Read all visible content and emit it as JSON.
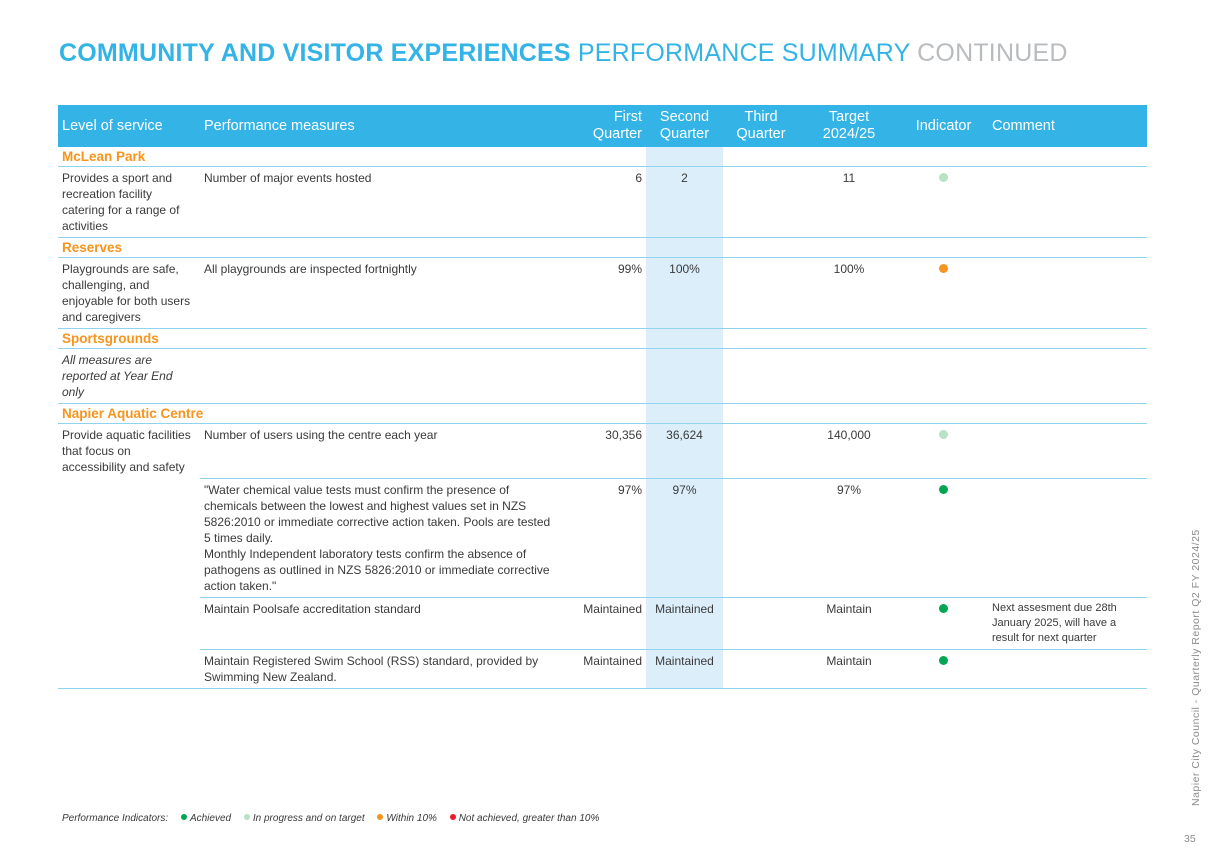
{
  "header": {
    "title_bold": "COMMUNITY AND VISITOR EXPERIENCES",
    "title_light": "PERFORMANCE SUMMARY",
    "title_grey": "CONTINUED"
  },
  "table": {
    "columns": {
      "level": "Level of service",
      "measures": "Performance measures",
      "q1_line1": "First",
      "q1_line2": "Quarter",
      "q2_line1": "Second",
      "q2_line2": "Quarter",
      "q3_line1": "Third",
      "q3_line2": "Quarter",
      "target_line1": "Target",
      "target_line2": "2024/25",
      "indicator": "Indicator",
      "comment": "Comment"
    },
    "sections": {
      "mclean": {
        "name": "McLean Park",
        "level": "Provides a sport and recreation facility catering for a range of activities",
        "row1": {
          "measure": "Number of major events hosted",
          "q1": "6",
          "q2": "2",
          "q3": "",
          "target": "11",
          "indicator": "in-progress",
          "comment": ""
        }
      },
      "reserves": {
        "name": "Reserves",
        "level": "Playgrounds are safe, challenging, and enjoyable for both users and caregivers",
        "row1": {
          "measure": "All playgrounds are inspected fortnightly",
          "q1": "99%",
          "q2": "100%",
          "q3": "",
          "target": "100%",
          "indicator": "within-10",
          "comment": ""
        }
      },
      "sportsgrounds": {
        "name": "Sportsgrounds",
        "level": "All measures are reported at Year End only"
      },
      "aquatic": {
        "name": "Napier Aquatic Centre",
        "level": "Provide aquatic facilities that focus on accessibility and safety",
        "row1": {
          "measure": "Number of users using the centre each year",
          "q1": "30,356",
          "q2": "36,624",
          "q3": "",
          "target": "140,000",
          "indicator": "in-progress",
          "comment": ""
        },
        "row2": {
          "measure_p1": "\"Water chemical value tests must confirm the presence of chemicals between the lowest and highest values set in NZS 5826:2010 or immediate corrective action taken. Pools are tested 5 times daily.",
          "measure_p2": "Monthly Independent laboratory tests confirm the absence of pathogens as outlined in NZS 5826:2010 or immediate corrective action taken.\"",
          "q1": "97%",
          "q2": "97%",
          "q3": "",
          "target": "97%",
          "indicator": "achieved",
          "comment": ""
        },
        "row3": {
          "measure": "Maintain Poolsafe accreditation standard",
          "q1": "Maintained",
          "q2": "Maintained",
          "q3": "",
          "target": "Maintain",
          "indicator": "achieved",
          "comment": "Next assesment due 28th January 2025, will have a result for next quarter"
        },
        "row4": {
          "measure": "Maintain Registered Swim School (RSS) standard, provided by Swimming New Zealand.",
          "q1": "Maintained",
          "q2": "Maintained",
          "q3": "",
          "target": "Maintain",
          "indicator": "achieved",
          "comment": ""
        }
      }
    }
  },
  "legend": {
    "label": "Performance Indicators:",
    "achieved": "Achieved",
    "in_progress": "In progress and on target",
    "within_10": "Within 10%",
    "not_achieved": "Not achieved, greater than 10%"
  },
  "indicator_colors": {
    "achieved": "#00a651",
    "in-progress": "#b7e2c3",
    "within-10": "#f7941d",
    "not-achieved": "#ed1c24"
  },
  "footer": {
    "side_text": "Napier City Council - Quarterly Report Q2 FY 2024/25",
    "page_number": "35"
  }
}
